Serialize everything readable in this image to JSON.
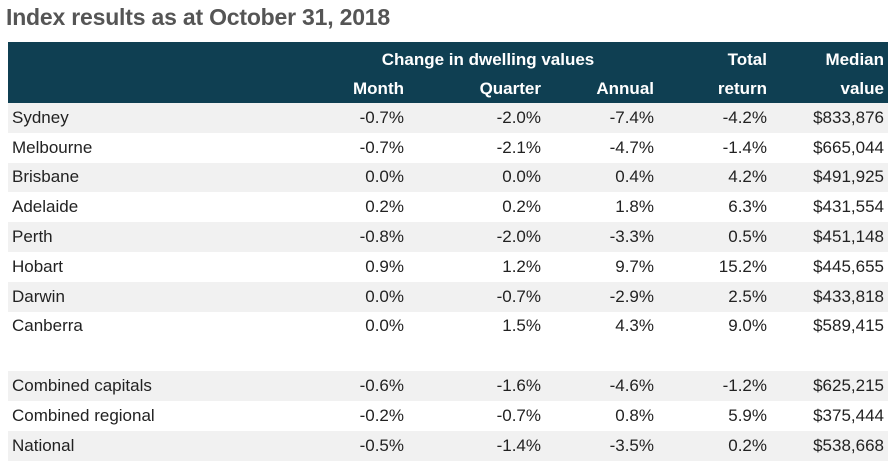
{
  "title": "Index results as at October 31, 2018",
  "header": {
    "group": "Change in dwelling values",
    "total_top": "Total",
    "median_top": "Median",
    "month": "Month",
    "quarter": "Quarter",
    "annual": "Annual",
    "total_bottom": "return",
    "median_bottom": "value"
  },
  "colors": {
    "header_bg": "#0f3f52",
    "row_shade": "#f1f1f1"
  },
  "rows": [
    {
      "name": "Sydney",
      "month": "-0.7%",
      "quarter": "-2.0%",
      "annual": "-7.4%",
      "total": "-4.2%",
      "median": "$833,876"
    },
    {
      "name": "Melbourne",
      "month": "-0.7%",
      "quarter": "-2.1%",
      "annual": "-4.7%",
      "total": "-1.4%",
      "median": "$665,044"
    },
    {
      "name": "Brisbane",
      "month": "0.0%",
      "quarter": "0.0%",
      "annual": "0.4%",
      "total": "4.2%",
      "median": "$491,925"
    },
    {
      "name": "Adelaide",
      "month": "0.2%",
      "quarter": "0.2%",
      "annual": "1.8%",
      "total": "6.3%",
      "median": "$431,554"
    },
    {
      "name": "Perth",
      "month": "-0.8%",
      "quarter": "-2.0%",
      "annual": "-3.3%",
      "total": "0.5%",
      "median": "$451,148"
    },
    {
      "name": "Hobart",
      "month": "0.9%",
      "quarter": "1.2%",
      "annual": "9.7%",
      "total": "15.2%",
      "median": "$445,655"
    },
    {
      "name": "Darwin",
      "month": "0.0%",
      "quarter": "-0.7%",
      "annual": "-2.9%",
      "total": "2.5%",
      "median": "$433,818"
    },
    {
      "name": "Canberra",
      "month": "0.0%",
      "quarter": "1.5%",
      "annual": "4.3%",
      "total": "9.0%",
      "median": "$589,415"
    }
  ],
  "summary_rows": [
    {
      "name": "Combined capitals",
      "month": "-0.6%",
      "quarter": "-1.6%",
      "annual": "-4.6%",
      "total": "-1.2%",
      "median": "$625,215"
    },
    {
      "name": "Combined regional",
      "month": "-0.2%",
      "quarter": "-0.7%",
      "annual": "0.8%",
      "total": "5.9%",
      "median": "$375,444"
    },
    {
      "name": "National",
      "month": "-0.5%",
      "quarter": "-1.4%",
      "annual": "-3.5%",
      "total": "0.2%",
      "median": "$538,668"
    }
  ]
}
